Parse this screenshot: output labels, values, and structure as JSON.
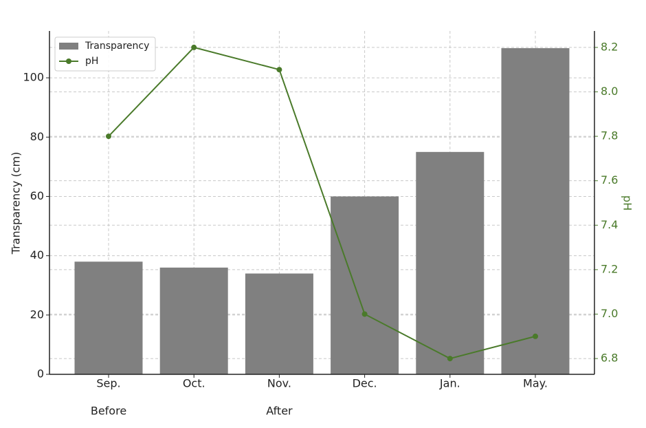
{
  "chart_data": {
    "type": "bar",
    "categories": [
      "Sep.",
      "Oct.",
      "Nov.",
      "Dec.",
      "Jan.",
      "May."
    ],
    "x_group_labels": [
      "Before",
      null,
      "After",
      null,
      null,
      null
    ],
    "series": [
      {
        "name": "Transparency",
        "type": "bar",
        "color": "#808080",
        "values": [
          38,
          36,
          34,
          60,
          75,
          110
        ]
      },
      {
        "name": "pH",
        "type": "line",
        "axis": "y2",
        "color": "#4a7a2a",
        "values": [
          7.8,
          8.2,
          8.1,
          7.0,
          6.8,
          6.9
        ]
      }
    ],
    "ylabel": "Transparency (cm)",
    "y2label": "pH",
    "ylim": [
      0,
      115.8
    ],
    "yticks": [
      0,
      20,
      40,
      60,
      80,
      100
    ],
    "y2lim": [
      6.729,
      8.274
    ],
    "y2ticks": [
      6.8,
      {
        "value": 7,
        "label": "7.0"
      },
      7.2,
      7.4,
      7.6,
      7.8,
      {
        "value": 8,
        "label": "8.0"
      },
      8.2
    ],
    "grid": true,
    "legend": "upper left"
  }
}
